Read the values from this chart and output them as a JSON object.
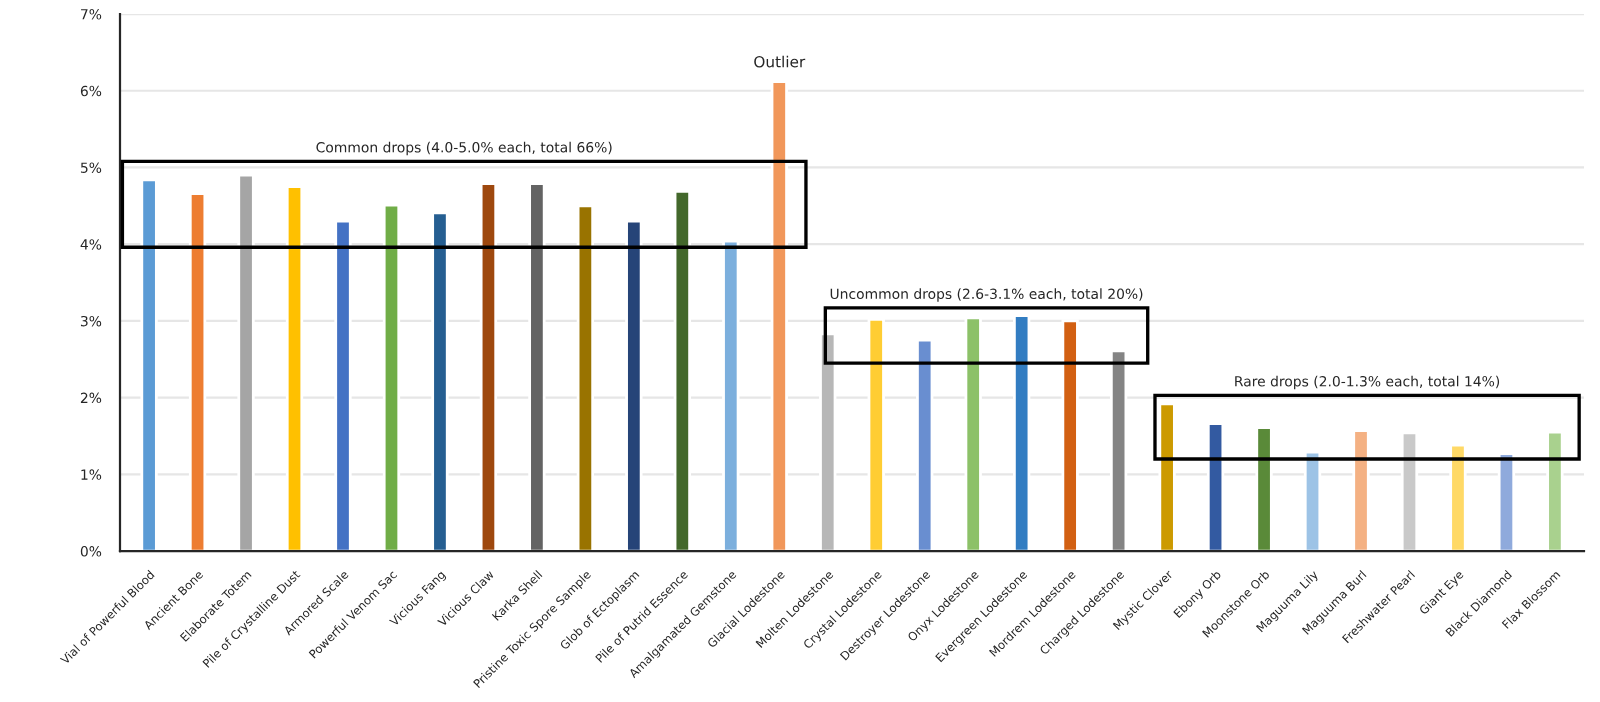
{
  "chart_data": {
    "type": "bar",
    "categories": [
      "Vial of Powerful Blood",
      "Ancient Bone",
      "Elaborate Totem",
      "Pile of Crystalline Dust",
      "Armored Scale",
      "Powerful Venom Sac",
      "Vicious Fang",
      "Vicious Claw",
      "Karka Shell",
      "Pristine Toxic Spore Sample",
      "Glob of Ectoplasm",
      "Pile of Putrid Essence",
      "Amalgamated Gemstone",
      "Glacial Lodestone",
      "Molten Lodestone",
      "Crystal Lodestone",
      "Destroyer Lodestone",
      "Onyx Lodestone",
      "Evergreen Lodestone",
      "Mordrem Lodestone",
      "Charged Lodestone",
      "Mystic Clover",
      "Ebony Orb",
      "Moonstone Orb",
      "Maguuma Lily",
      "Maguuma Burl",
      "Freshwater Pearl",
      "Giant Eye",
      "Black Diamond",
      "Flax Blossom"
    ],
    "values": [
      4.84,
      4.66,
      4.9,
      4.75,
      4.3,
      4.51,
      4.41,
      4.79,
      4.79,
      4.5,
      4.3,
      4.69,
      4.04,
      6.12,
      2.83,
      3.02,
      2.75,
      3.04,
      3.07,
      3.0,
      2.61,
      1.92,
      1.66,
      1.61,
      1.29,
      1.57,
      1.54,
      1.38,
      1.27,
      1.55
    ],
    "colors": [
      "#5b9bd5",
      "#ed7d31",
      "#a5a5a5",
      "#ffc000",
      "#4472c4",
      "#70ad47",
      "#255e91",
      "#9e480e",
      "#636363",
      "#997300",
      "#264478",
      "#43682b",
      "#7cafdd",
      "#f1975a",
      "#b7b7b7",
      "#ffcd33",
      "#698ed0",
      "#8cc168",
      "#327dc2",
      "#d26012",
      "#848484",
      "#cc9a00",
      "#335aa1",
      "#5a8a39",
      "#9dc3e6",
      "#f4b183",
      "#c9c9c9",
      "#ffd966",
      "#8faadc",
      "#a9d18e"
    ],
    "ylim": [
      0,
      7
    ],
    "yticks": [
      {
        "value": 0,
        "label": "0%"
      },
      {
        "value": 1,
        "label": "1%"
      },
      {
        "value": 2,
        "label": "2%"
      },
      {
        "value": 3,
        "label": "3%"
      },
      {
        "value": 4,
        "label": "4%"
      },
      {
        "value": 5,
        "label": "5%"
      },
      {
        "value": 6,
        "label": "6%"
      },
      {
        "value": 7,
        "label": "7%"
      }
    ],
    "grid": "y",
    "annotations": [
      {
        "text": "Outlier",
        "x": "Glacial Lodestone",
        "y": 6.12
      },
      "Common drops (4.0-5.0% each, total 66%)",
      "Uncommon drops (2.6-3.1% each, total 20%)",
      "Rare drops (2.0-1.3% each, total 14%)"
    ]
  }
}
